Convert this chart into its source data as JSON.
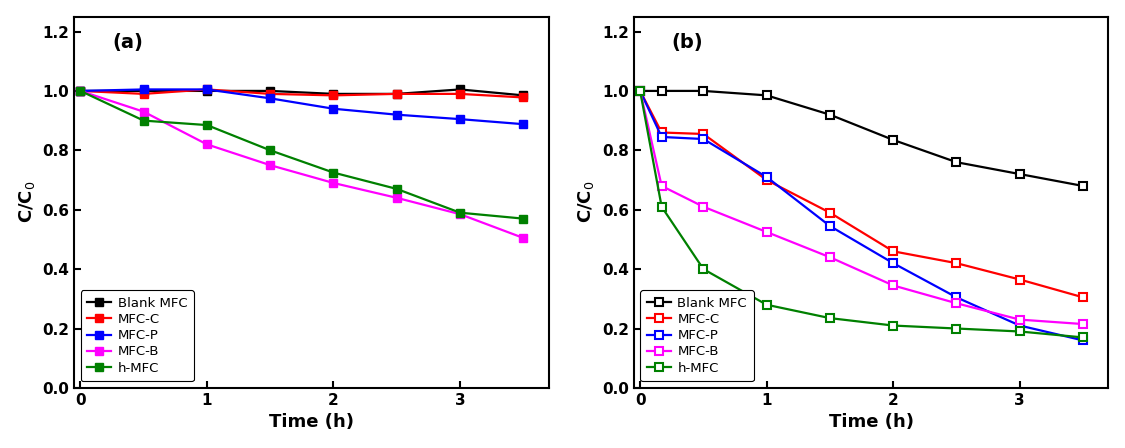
{
  "panel_a": {
    "time": [
      0,
      0.5,
      1.0,
      1.5,
      2.0,
      2.5,
      3.0,
      3.5
    ],
    "Blank MFC": [
      1.0,
      1.0,
      1.0,
      1.0,
      0.99,
      0.99,
      1.005,
      0.985
    ],
    "MFC-C": [
      1.0,
      0.99,
      1.005,
      0.99,
      0.985,
      0.99,
      0.99,
      0.978
    ],
    "MFC-P": [
      1.0,
      1.005,
      1.005,
      0.975,
      0.94,
      0.92,
      0.905,
      0.888
    ],
    "MFC-B": [
      1.0,
      0.93,
      0.82,
      0.75,
      0.69,
      0.64,
      0.585,
      0.505
    ],
    "h-MFC": [
      1.0,
      0.9,
      0.885,
      0.8,
      0.725,
      0.67,
      0.59,
      0.57
    ]
  },
  "panel_b": {
    "time": [
      0,
      0.17,
      0.5,
      1.0,
      1.5,
      2.0,
      2.5,
      3.0,
      3.5
    ],
    "Blank MFC": [
      1.0,
      1.0,
      1.0,
      0.985,
      0.92,
      0.835,
      0.76,
      0.72,
      0.68
    ],
    "MFC-C": [
      1.0,
      0.86,
      0.855,
      0.7,
      0.59,
      0.46,
      0.42,
      0.365,
      0.305
    ],
    "MFC-P": [
      1.0,
      0.845,
      0.838,
      0.71,
      0.545,
      0.42,
      0.305,
      0.21,
      0.16
    ],
    "MFC-B": [
      1.0,
      0.68,
      0.61,
      0.525,
      0.44,
      0.345,
      0.285,
      0.23,
      0.215
    ],
    "h-MFC": [
      1.0,
      0.61,
      0.4,
      0.28,
      0.235,
      0.21,
      0.2,
      0.19,
      0.17
    ]
  },
  "colors": {
    "Blank MFC": "#000000",
    "MFC-C": "#ff0000",
    "MFC-P": "#0000ff",
    "MFC-B": "#ff00ff",
    "h-MFC": "#008000"
  },
  "series_order": [
    "Blank MFC",
    "MFC-C",
    "MFC-P",
    "MFC-B",
    "h-MFC"
  ],
  "ylabel": "C/C$_0$",
  "xlabel": "Time (h)",
  "ylim": [
    0.0,
    1.25
  ],
  "yticks": [
    0.0,
    0.2,
    0.4,
    0.6,
    0.8,
    1.0,
    1.2
  ],
  "xticks": [
    0,
    1,
    2,
    3
  ],
  "xlim": [
    -0.05,
    3.7
  ]
}
